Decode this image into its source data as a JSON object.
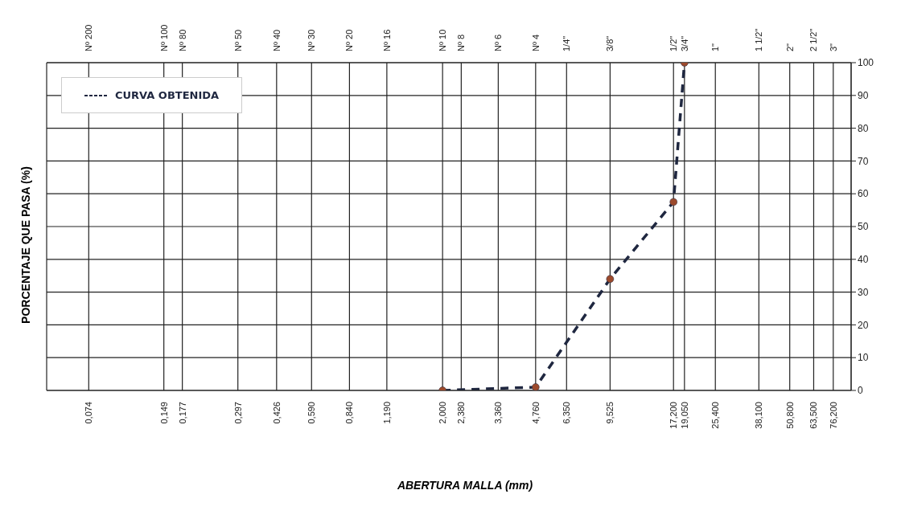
{
  "chart_data": {
    "type": "line",
    "xlabel": "ABERTURA MALLA (mm)",
    "ylabel": "PORCENTAJE QUE PASA (%)",
    "log": "x",
    "xlim": [
      0.05,
      90
    ],
    "ylim": [
      0,
      100
    ],
    "xticks": [
      {
        "value": 0.074,
        "label": "0,074"
      },
      {
        "value": 0.149,
        "label": "0,149"
      },
      {
        "value": 0.177,
        "label": "0,177"
      },
      {
        "value": 0.297,
        "label": "0,297"
      },
      {
        "value": 0.426,
        "label": "0,426"
      },
      {
        "value": 0.59,
        "label": "0,590"
      },
      {
        "value": 0.84,
        "label": "0,840"
      },
      {
        "value": 1.19,
        "label": "1,190"
      },
      {
        "value": 2.0,
        "label": "2,000"
      },
      {
        "value": 2.38,
        "label": "2,380"
      },
      {
        "value": 3.36,
        "label": "3,360"
      },
      {
        "value": 4.76,
        "label": "4,760"
      },
      {
        "value": 6.35,
        "label": "6,350"
      },
      {
        "value": 9.525,
        "label": "9,525"
      },
      {
        "value": 17.2,
        "label": "17,200"
      },
      {
        "value": 19.05,
        "label": "19,050"
      },
      {
        "value": 25.4,
        "label": "25,400"
      },
      {
        "value": 38.1,
        "label": "38,100"
      },
      {
        "value": 50.8,
        "label": "50,800"
      },
      {
        "value": 63.5,
        "label": "63,500"
      },
      {
        "value": 76.2,
        "label": "76,200"
      }
    ],
    "annotations": [
      "Nº 200",
      "Nº 100",
      "Nº 80",
      "Nº 50",
      "Nº 40",
      "Nº 30",
      "Nº 20",
      "Nº 16",
      "Nº 10",
      "Nº 8",
      "Nº 6",
      "Nº 4",
      "1/4\"",
      "3/8\"",
      "1/2\"",
      "3/4\"",
      "1\"",
      "1 1/2\"",
      "2\"",
      "2 1/2\"",
      "3\""
    ],
    "yticks": [
      0,
      10,
      20,
      30,
      40,
      50,
      60,
      70,
      80,
      90,
      100
    ],
    "grid": true,
    "legend": "top left",
    "marker": "circle",
    "line_style": "dashed",
    "x": [
      2.0,
      4.76,
      9.525,
      17.2,
      19.05
    ],
    "series": [
      {
        "name": "CURVA OBTENIDA",
        "color": "#1f2740",
        "values": [
          0,
          1,
          34,
          57.5,
          100
        ]
      }
    ]
  }
}
